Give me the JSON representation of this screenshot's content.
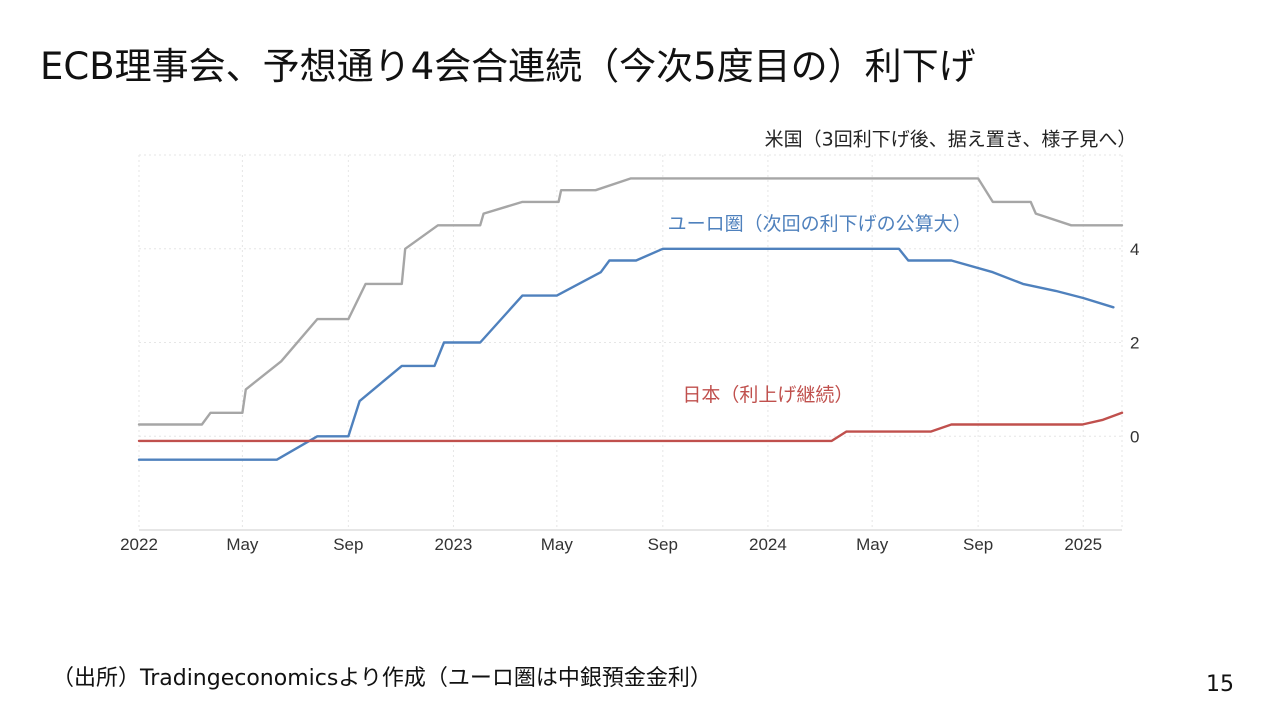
{
  "slide": {
    "title": "ECB理事会、予想通り4会合連続（今次5度目の）利下げ",
    "source": "（出所）Tradingeconomicsより作成（ユーロ圏は中銀預金金利）",
    "page_number": "15"
  },
  "chart_data": {
    "type": "line",
    "title": "",
    "xlabel": "",
    "ylabel": "",
    "x_axis": {
      "type": "date",
      "range": [
        "2022-01-01",
        "2025-02-15"
      ],
      "tick_labels": [
        {
          "date": "2022-01-01",
          "label": "2022"
        },
        {
          "date": "2022-05-01",
          "label": "May"
        },
        {
          "date": "2022-09-01",
          "label": "Sep"
        },
        {
          "date": "2023-01-01",
          "label": "2023"
        },
        {
          "date": "2023-05-01",
          "label": "May"
        },
        {
          "date": "2023-09-01",
          "label": "Sep"
        },
        {
          "date": "2024-01-01",
          "label": "2024"
        },
        {
          "date": "2024-05-01",
          "label": "May"
        },
        {
          "date": "2024-09-01",
          "label": "Sep"
        },
        {
          "date": "2025-01-01",
          "label": "2025"
        }
      ]
    },
    "y_axis": {
      "position": "right",
      "ylim": [
        -2,
        6
      ],
      "ticks": [
        0,
        2,
        4
      ]
    },
    "grid": true,
    "series": [
      {
        "name": "米国（3回利下げ後、据え置き、様子見へ）",
        "color": "#a6a6a6",
        "points": [
          [
            "2022-01-01",
            0.25
          ],
          [
            "2022-03-15",
            0.25
          ],
          [
            "2022-03-25",
            0.5
          ],
          [
            "2022-05-01",
            0.5
          ],
          [
            "2022-05-05",
            1.0
          ],
          [
            "2022-06-15",
            1.6
          ],
          [
            "2022-07-27",
            2.5
          ],
          [
            "2022-09-01",
            2.5
          ],
          [
            "2022-09-21",
            3.25
          ],
          [
            "2022-11-02",
            3.25
          ],
          [
            "2022-11-06",
            4.0
          ],
          [
            "2022-12-14",
            4.5
          ],
          [
            "2023-02-01",
            4.5
          ],
          [
            "2023-02-05",
            4.75
          ],
          [
            "2023-03-22",
            5.0
          ],
          [
            "2023-05-03",
            5.0
          ],
          [
            "2023-05-06",
            5.25
          ],
          [
            "2023-06-15",
            5.25
          ],
          [
            "2023-07-26",
            5.5
          ],
          [
            "2024-09-01",
            5.5
          ],
          [
            "2024-09-18",
            5.0
          ],
          [
            "2024-11-01",
            5.0
          ],
          [
            "2024-11-07",
            4.75
          ],
          [
            "2024-12-18",
            4.5
          ],
          [
            "2025-02-15",
            4.5
          ]
        ],
        "label_pos": {
          "date": "2024-07-31",
          "y": 6.2
        }
      },
      {
        "name": "ユーロ圏（次回の利下げの公算大）",
        "color": "#4f81bd",
        "points": [
          [
            "2022-01-01",
            -0.5
          ],
          [
            "2022-06-10",
            -0.5
          ],
          [
            "2022-07-27",
            0.0
          ],
          [
            "2022-09-01",
            0.0
          ],
          [
            "2022-09-14",
            0.75
          ],
          [
            "2022-11-02",
            1.5
          ],
          [
            "2022-12-10",
            1.5
          ],
          [
            "2022-12-21",
            2.0
          ],
          [
            "2023-02-01",
            2.0
          ],
          [
            "2023-03-22",
            3.0
          ],
          [
            "2023-05-01",
            3.0
          ],
          [
            "2023-06-21",
            3.5
          ],
          [
            "2023-07-01",
            3.75
          ],
          [
            "2023-08-01",
            3.75
          ],
          [
            "2023-09-01",
            4.0
          ],
          [
            "2024-06-01",
            4.0
          ],
          [
            "2024-06-12",
            3.75
          ],
          [
            "2024-08-01",
            3.75
          ],
          [
            "2024-09-18",
            3.5
          ],
          [
            "2024-10-23",
            3.25
          ],
          [
            "2024-11-30",
            3.1
          ],
          [
            "2025-01-01",
            2.95
          ],
          [
            "2025-02-05",
            2.75
          ]
        ],
        "label_pos": {
          "date": "2024-03-01",
          "y": 4.4
        }
      },
      {
        "name": "日本（利上げ継続）",
        "color": "#c0504d",
        "points": [
          [
            "2022-01-01",
            -0.1
          ],
          [
            "2024-03-15",
            -0.1
          ],
          [
            "2024-04-01",
            0.1
          ],
          [
            "2024-07-08",
            0.1
          ],
          [
            "2024-08-01",
            0.25
          ],
          [
            "2024-12-31",
            0.25
          ],
          [
            "2025-01-24",
            0.35
          ],
          [
            "2025-02-15",
            0.5
          ]
        ],
        "label_pos": {
          "date": "2024-01-01",
          "y": 0.75
        }
      }
    ]
  }
}
